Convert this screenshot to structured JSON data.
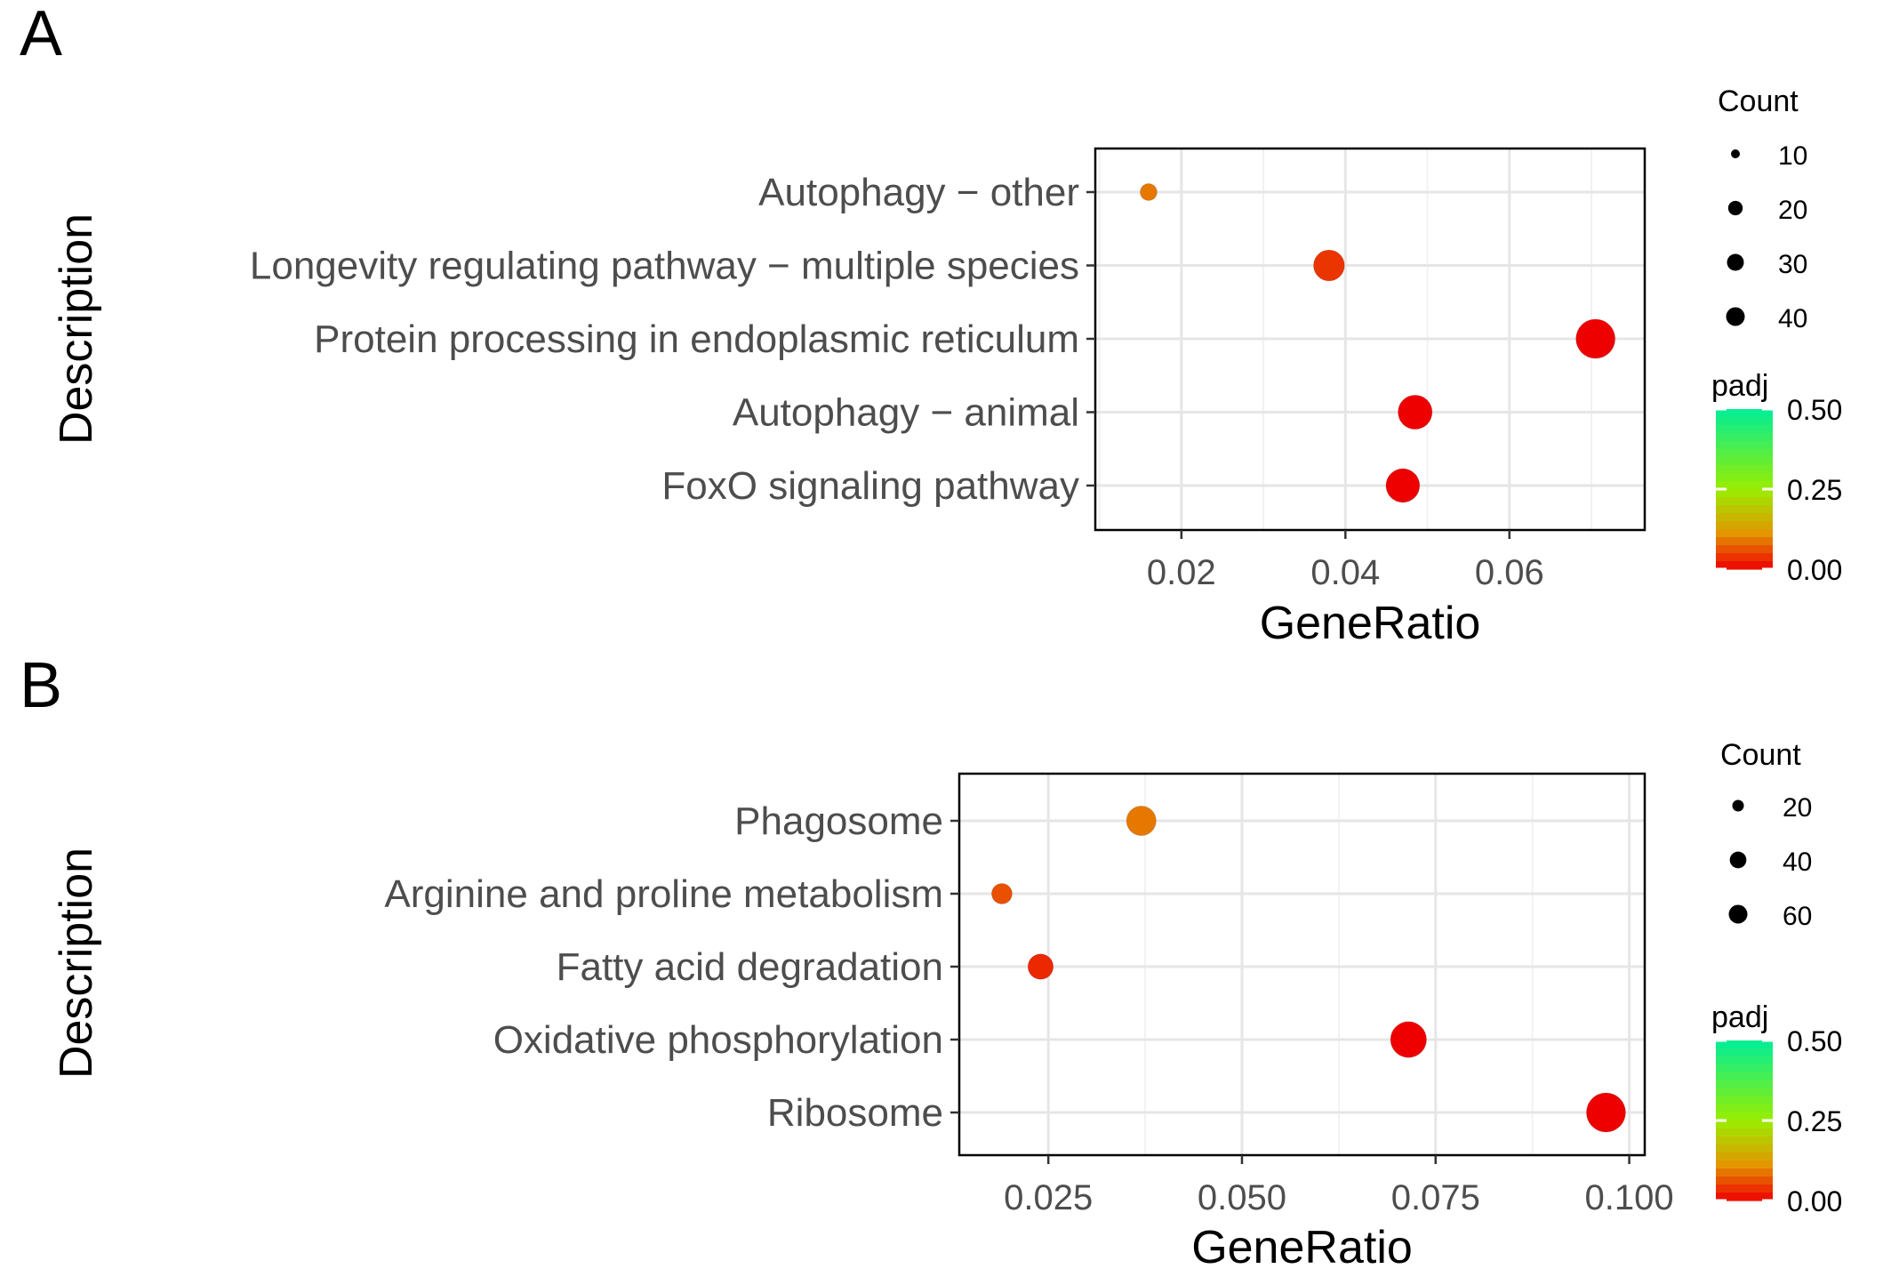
{
  "panels": [
    {
      "label": "A",
      "chart_data": {
        "type": "scatter",
        "xlabel": "GeneRatio",
        "ylabel": "Description",
        "xlim": [
          0.0095,
          0.0765
        ],
        "xticks": [
          0.02,
          0.04,
          0.06
        ],
        "xtick_labels": [
          "0.02",
          "0.04",
          "0.06"
        ],
        "categories": [
          "Autophagy − other",
          "Longevity regulating pathway − multiple species",
          "Protein processing in endoplasmic reticulum",
          "Autophagy − animal",
          "FoxO signaling pathway"
        ],
        "points": [
          {
            "description": "Autophagy − other",
            "gene_ratio": 0.016,
            "count": 10,
            "padj": 0.09
          },
          {
            "description": "Longevity regulating pathway − multiple species",
            "gene_ratio": 0.038,
            "count": 24,
            "padj": 0.04
          },
          {
            "description": "Protein processing in endoplasmic reticulum",
            "gene_ratio": 0.0705,
            "count": 45,
            "padj": 0.0
          },
          {
            "description": "Autophagy − animal",
            "gene_ratio": 0.0485,
            "count": 31,
            "padj": 0.0
          },
          {
            "description": "FoxO signaling pathway",
            "gene_ratio": 0.047,
            "count": 30,
            "padj": 0.0
          }
        ],
        "size_legend": {
          "title": "Count",
          "values": [
            10,
            20,
            30,
            40
          ],
          "labels": [
            "10",
            "20",
            "30",
            "40"
          ]
        },
        "color_legend": {
          "title": "padj",
          "range": [
            0.0,
            0.5
          ],
          "ticks": [
            0.0,
            0.25,
            0.5
          ],
          "tick_labels": [
            "0.00",
            "0.25",
            "0.50"
          ],
          "low_color": "#ee0000",
          "mid_color": "#99ee00",
          "high_color": "#00ee99"
        },
        "grid": true,
        "legend_placement": "right"
      }
    },
    {
      "label": "B",
      "chart_data": {
        "type": "scatter",
        "xlabel": "GeneRatio",
        "ylabel": "Description",
        "xlim": [
          0.0135,
          0.102
        ],
        "xticks": [
          0.025,
          0.05,
          0.075,
          0.1
        ],
        "xtick_labels": [
          "0.025",
          "0.050",
          "0.075",
          "0.100"
        ],
        "categories": [
          "Phagosome",
          "Arginine and proline metabolism",
          "Fatty acid degradation",
          "Oxidative phosphorylation",
          "Ribosome"
        ],
        "points": [
          {
            "description": "Phagosome",
            "gene_ratio": 0.037,
            "count": 28,
            "padj": 0.09
          },
          {
            "description": "Arginine and proline metabolism",
            "gene_ratio": 0.019,
            "count": 14,
            "padj": 0.06
          },
          {
            "description": "Fatty acid degradation",
            "gene_ratio": 0.024,
            "count": 18,
            "padj": 0.03
          },
          {
            "description": "Oxidative phosphorylation",
            "gene_ratio": 0.0715,
            "count": 54,
            "padj": 0.0
          },
          {
            "description": "Ribosome",
            "gene_ratio": 0.097,
            "count": 72,
            "padj": 0.0
          }
        ],
        "size_legend": {
          "title": "Count",
          "values": [
            20,
            40,
            60
          ],
          "labels": [
            "20",
            "40",
            "60"
          ]
        },
        "color_legend": {
          "title": "padj",
          "range": [
            0.0,
            0.5
          ],
          "ticks": [
            0.0,
            0.25,
            0.5
          ],
          "tick_labels": [
            "0.00",
            "0.25",
            "0.50"
          ],
          "low_color": "#ee0000",
          "mid_color": "#99ee00",
          "high_color": "#00ee99"
        },
        "grid": true,
        "legend_placement": "right"
      }
    }
  ]
}
